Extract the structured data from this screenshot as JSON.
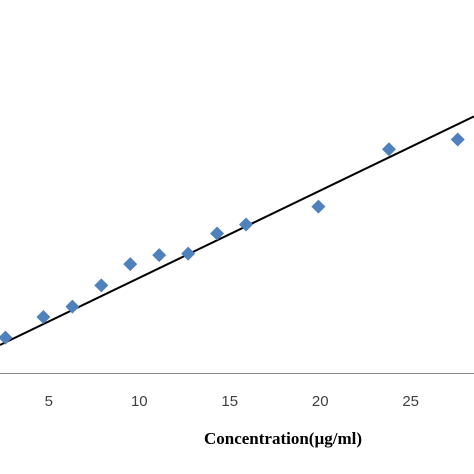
{
  "chart_data": {
    "type": "scatter",
    "title": "",
    "xlabel": "Concentration(µg/ml)",
    "ylabel": "",
    "xlim": [
      2.3,
      28.5
    ],
    "ylim": [
      0,
      1
    ],
    "x_ticks": [
      "5",
      "10",
      "15",
      "20",
      "25"
    ],
    "grid": false,
    "marker_color": "#4F81BD",
    "series": [
      {
        "marker": "diamond",
        "x": [
          2.6,
          4.7,
          6.3,
          7.9,
          9.5,
          11.1,
          12.7,
          14.3,
          15.9,
          19.9,
          23.8,
          27.6
        ],
        "y": [
          0.095,
          0.15,
          0.178,
          0.235,
          0.292,
          0.316,
          0.32,
          0.374,
          0.398,
          0.446,
          0.6,
          0.626
        ]
      }
    ],
    "trendline": {
      "type": "linear",
      "x": [
        2.3,
        28.5
      ],
      "y": [
        0.075,
        0.688
      ],
      "color": "#000000"
    }
  }
}
